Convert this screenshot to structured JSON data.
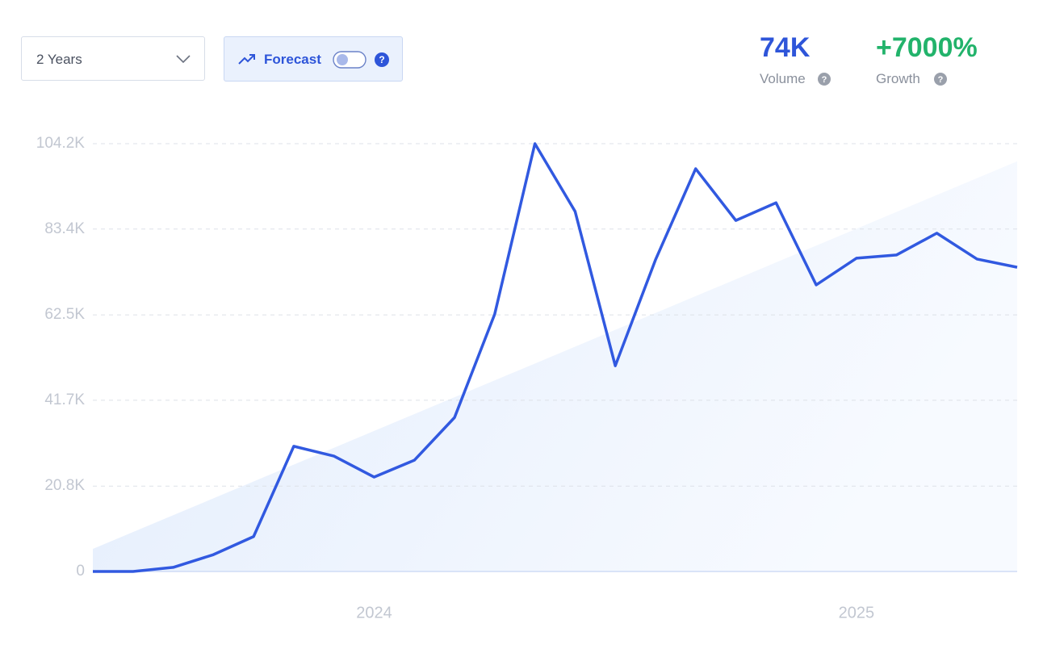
{
  "controls": {
    "period": "2 Years",
    "forecast": "Forecast"
  },
  "stats": {
    "volume": {
      "value": "74K",
      "label": "Volume"
    },
    "growth": {
      "value": "+7000%",
      "label": "Growth"
    }
  },
  "chart_data": {
    "type": "line",
    "categories": [
      null,
      null,
      null,
      null,
      null,
      null,
      null,
      "2024",
      null,
      null,
      null,
      null,
      null,
      null,
      null,
      null,
      null,
      null,
      null,
      "2025",
      null,
      null,
      null,
      null
    ],
    "series": [
      {
        "color": "#3159e0",
        "values": [
          0,
          0,
          1000,
          4100,
          8500,
          30500,
          28100,
          23000,
          27100,
          37500,
          62700,
          104200,
          87700,
          50100,
          75900,
          98100,
          85500,
          89800,
          69800,
          76300,
          77100,
          82400,
          76100,
          74100
        ]
      }
    ],
    "trend": {
      "start": 5500,
      "end": 99900
    },
    "ylim": [
      0,
      104200
    ],
    "yticks": [
      0,
      {
        "value": 20800,
        "label": "20.8K"
      },
      {
        "value": 41700,
        "label": "41.7K"
      },
      {
        "value": 62500,
        "label": "62.5K"
      },
      {
        "value": 83400,
        "label": "83.4K"
      },
      {
        "value": 104200,
        "label": "104.2K"
      }
    ],
    "grid": true
  }
}
